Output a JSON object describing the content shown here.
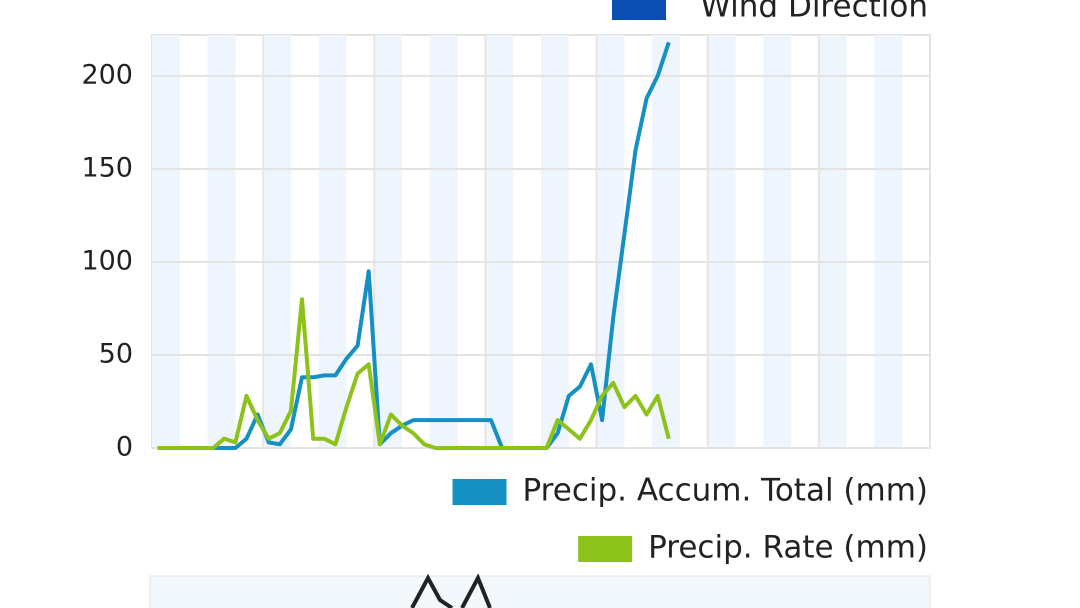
{
  "chart_data": {
    "type": "line",
    "legend_top": "Wind Direction",
    "legend_top_color": "#0b4fb3",
    "categories": [
      null,
      null,
      null,
      null,
      null,
      null,
      null,
      null,
      null,
      null,
      null,
      null,
      null,
      null,
      null,
      null,
      null,
      null,
      null,
      null,
      null,
      null,
      null,
      null,
      null,
      null,
      null,
      null,
      null,
      null,
      null,
      null,
      null,
      null,
      null,
      null,
      null,
      null,
      null,
      null,
      null,
      null,
      null,
      null,
      null,
      null,
      null,
      null,
      null,
      null,
      null,
      null,
      null,
      null,
      null,
      null,
      null,
      null,
      null,
      null,
      null,
      null,
      null,
      null,
      null,
      null,
      null,
      null,
      null,
      null
    ],
    "series": [
      {
        "name": "Precip. Accum. Total (mm)",
        "color": "#1590c2",
        "values": [
          0,
          0,
          0,
          0,
          0,
          0,
          0,
          0,
          5,
          18,
          3,
          2,
          10,
          38,
          38,
          39,
          39,
          48,
          55,
          95,
          2,
          8,
          12,
          15,
          15,
          15,
          15,
          15,
          15,
          15,
          15,
          0,
          0,
          0,
          0,
          0,
          8,
          28,
          33,
          45,
          15,
          70,
          115,
          160,
          188,
          200,
          218,
          null,
          null,
          null,
          null,
          null,
          null,
          null,
          null,
          null,
          null,
          null,
          null,
          null,
          null,
          null,
          null,
          null,
          null,
          null,
          null,
          null,
          null,
          null
        ]
      },
      {
        "name": "Precip. Rate (mm)",
        "color": "#8cc21a",
        "values": [
          0,
          0,
          0,
          0,
          0,
          0,
          5,
          3,
          28,
          15,
          5,
          8,
          20,
          80,
          5,
          5,
          2,
          22,
          40,
          45,
          2,
          18,
          12,
          8,
          2,
          0,
          0,
          0,
          0,
          0,
          0,
          0,
          0,
          0,
          0,
          0,
          15,
          10,
          5,
          15,
          28,
          35,
          22,
          28,
          18,
          28,
          5,
          null,
          null,
          null,
          null,
          null,
          null,
          null,
          null,
          null,
          null,
          null,
          null,
          null,
          null,
          null,
          null,
          null,
          null,
          null,
          null,
          null,
          null,
          null
        ]
      }
    ],
    "ylim": [
      0,
      222
    ],
    "yticks": [
      0,
      50,
      100,
      150,
      200
    ],
    "grid": true
  }
}
